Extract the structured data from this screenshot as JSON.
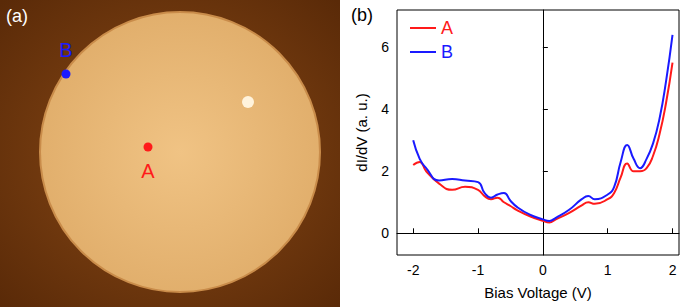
{
  "image_panel": {
    "label": "(a)",
    "points": [
      {
        "label": "B",
        "color": "#1a1aff"
      },
      {
        "label": "A",
        "color": "#ff1a1a"
      }
    ]
  },
  "chart_data": {
    "type": "line",
    "annotations": [
      "(b)"
    ],
    "x_label": "Bias Voltage (V)",
    "y_label": "dI/dV (a. u.)",
    "x": [
      -2.0,
      -1.9,
      -1.8,
      -1.6,
      -1.4,
      -1.2,
      -1.0,
      -0.9,
      -0.8,
      -0.7,
      -0.6,
      -0.5,
      -0.4,
      -0.2,
      0.0,
      0.1,
      0.2,
      0.4,
      0.6,
      0.7,
      0.8,
      1.0,
      1.1,
      1.2,
      1.3,
      1.4,
      1.5,
      1.6,
      1.7,
      1.8,
      1.9,
      2.0
    ],
    "series": [
      {
        "name": "A",
        "color": "#ff1a1a",
        "values": [
          2.2,
          2.3,
          2.0,
          1.6,
          1.4,
          1.5,
          1.4,
          1.2,
          1.1,
          1.15,
          1.0,
          0.88,
          0.75,
          0.55,
          0.4,
          0.35,
          0.45,
          0.65,
          0.9,
          1.0,
          0.95,
          1.1,
          1.3,
          1.8,
          2.25,
          2.0,
          2.0,
          2.1,
          2.5,
          3.2,
          4.2,
          5.5
        ]
      },
      {
        "name": "B",
        "color": "#1a1aff",
        "values": [
          3.0,
          2.4,
          2.1,
          1.7,
          1.75,
          1.7,
          1.65,
          1.3,
          1.15,
          1.25,
          1.3,
          1.05,
          0.85,
          0.6,
          0.45,
          0.4,
          0.5,
          0.75,
          1.1,
          1.2,
          1.1,
          1.25,
          1.5,
          2.3,
          2.85,
          2.4,
          2.1,
          2.4,
          2.9,
          3.7,
          4.9,
          6.4
        ]
      }
    ],
    "xlim": [
      -2.25,
      2.1
    ],
    "xticks": [
      -2,
      -1,
      0,
      1,
      2
    ],
    "ylim": [
      -0.7,
      7.2
    ],
    "yticks": [
      0,
      2,
      4,
      6
    ],
    "legend": "upper left",
    "grid": false
  }
}
